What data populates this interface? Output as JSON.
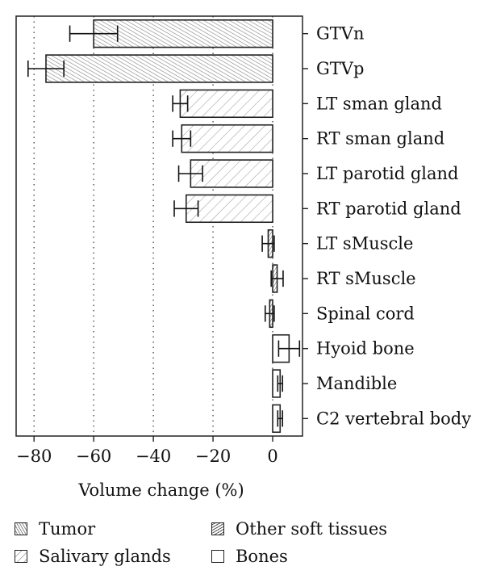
{
  "chart_data": {
    "type": "bar",
    "orientation": "horizontal",
    "xlabel": "Volume change (%)",
    "xlim": [
      -86,
      10
    ],
    "xticks": [
      -80,
      -60,
      -40,
      -20,
      0
    ],
    "grid": "dotted vertical",
    "categories": [
      "GTVn",
      "GTVp",
      "LT sman gland",
      "RT sman gland",
      "LT parotid gland",
      "RT parotid gland",
      "LT sMuscle",
      "RT sMuscle",
      "Spinal cord",
      "Hyoid bone",
      "Mandible",
      "C2 vertebral body"
    ],
    "values": [
      -60,
      -76,
      -31,
      -30.5,
      -27.5,
      -29,
      -1.5,
      1.5,
      -1,
      5.5,
      2.5,
      2.5
    ],
    "error": [
      8,
      6,
      2.5,
      3,
      4,
      4,
      2,
      2,
      1.5,
      3.5,
      0.8,
      0.8
    ],
    "groups": [
      "Tumor",
      "Tumor",
      "Salivary glands",
      "Salivary glands",
      "Salivary glands",
      "Salivary glands",
      "Other soft tissues",
      "Other soft tissues",
      "Other soft tissues",
      "Bones",
      "Bones",
      "Bones"
    ]
  },
  "legend": [
    {
      "label": "Tumor",
      "pattern": "tumor"
    },
    {
      "label": "Other soft tissues",
      "pattern": "other"
    },
    {
      "label": "Salivary glands",
      "pattern": "salivary"
    },
    {
      "label": "Bones",
      "pattern": "bones"
    }
  ]
}
